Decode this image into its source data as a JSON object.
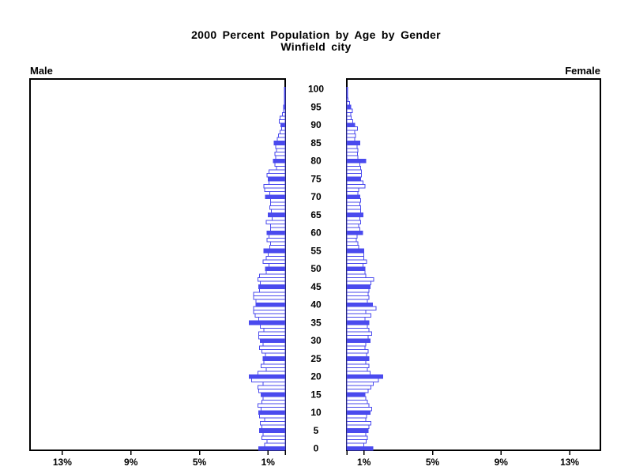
{
  "title": "2000 Percent Population by Age by Gender",
  "subtitle": "Winfield city",
  "left_label": "Male",
  "right_label": "Female",
  "chart_data": {
    "type": "bar",
    "variant": "population-pyramid",
    "title": "2000 Percent Population by Age by Gender",
    "subtitle": "Winfield city",
    "unit": "percent of population per single year of age",
    "legend_position": "none",
    "grid": false,
    "age_axis": {
      "min": 0,
      "max": 100,
      "tick_interval": 5,
      "tick_labels": [
        "0",
        "5",
        "10",
        "15",
        "20",
        "25",
        "30",
        "35",
        "40",
        "45",
        "50",
        "55",
        "60",
        "65",
        "70",
        "75",
        "80",
        "85",
        "90",
        "95",
        "100"
      ]
    },
    "x_axis": {
      "tick_values": [
        1,
        5,
        9,
        13
      ],
      "tick_labels": [
        "1%",
        "5%",
        "9%",
        "13%"
      ],
      "range_percent": [
        0,
        14.9
      ]
    },
    "highlight_rule": "bars for ages divisible by 5 are filled solid blue; other ages are white with blue outline",
    "colors": {
      "bar_outline": "#4a4aee",
      "bar_fill_solid": "#4a4aee",
      "bar_fill_regular": "#ffffff",
      "axis": "#000000",
      "text": "#000000",
      "background": "#ffffff"
    },
    "series": [
      {
        "name": "Male",
        "side": "left",
        "values": [
          1.55,
          1.2,
          1.05,
          1.35,
          1.3,
          1.5,
          1.35,
          1.45,
          1.2,
          1.5,
          1.55,
          1.4,
          1.6,
          1.35,
          1.3,
          1.4,
          1.55,
          1.6,
          1.3,
          1.95,
          2.1,
          1.6,
          1.1,
          1.4,
          1.25,
          1.3,
          1.15,
          1.35,
          1.5,
          1.3,
          1.45,
          1.55,
          1.55,
          1.25,
          1.45,
          2.1,
          1.55,
          1.75,
          1.85,
          1.85,
          1.7,
          1.7,
          1.85,
          1.85,
          1.5,
          1.55,
          1.45,
          1.6,
          1.5,
          1.1,
          1.15,
          0.95,
          1.3,
          1.1,
          1.0,
          1.25,
          0.9,
          0.85,
          1.05,
          0.95,
          1.05,
          0.85,
          0.85,
          1.1,
          0.75,
          1.0,
          0.8,
          0.9,
          0.85,
          0.85,
          1.15,
          0.9,
          1.2,
          1.25,
          0.95,
          1.0,
          1.05,
          0.95,
          0.5,
          0.6,
          0.7,
          0.55,
          0.6,
          0.5,
          0.55,
          0.65,
          0.45,
          0.4,
          0.3,
          0.2,
          0.25,
          0.35,
          0.3,
          0.15,
          0.1,
          0.1,
          0.05,
          0.05,
          0.05,
          0.03,
          0.03
        ]
      },
      {
        "name": "Female",
        "side": "right",
        "values": [
          1.53,
          1.0,
          1.12,
          1.2,
          1.1,
          1.25,
          1.3,
          1.4,
          1.1,
          1.15,
          1.35,
          1.45,
          1.3,
          1.2,
          1.1,
          1.05,
          1.25,
          1.4,
          1.55,
          1.85,
          2.1,
          1.35,
          1.2,
          1.3,
          1.1,
          1.3,
          1.15,
          1.25,
          1.05,
          1.1,
          1.35,
          1.25,
          1.45,
          1.3,
          1.2,
          1.3,
          1.05,
          1.4,
          1.1,
          1.7,
          1.5,
          1.2,
          1.3,
          1.25,
          1.28,
          1.35,
          1.4,
          1.57,
          1.1,
          1.05,
          1.05,
          0.95,
          1.15,
          1.0,
          1.0,
          1.0,
          0.7,
          0.65,
          0.55,
          0.6,
          0.93,
          0.75,
          0.7,
          0.8,
          0.75,
          0.95,
          0.8,
          0.8,
          0.75,
          0.8,
          0.75,
          0.65,
          0.7,
          1.05,
          0.95,
          0.8,
          0.85,
          0.85,
          0.8,
          0.75,
          1.1,
          0.65,
          0.62,
          0.65,
          0.6,
          0.75,
          0.47,
          0.5,
          0.45,
          0.63,
          0.46,
          0.35,
          0.25,
          0.23,
          0.32,
          0.23,
          0.15,
          0.08,
          0.05,
          0.03,
          0.03
        ]
      }
    ]
  }
}
